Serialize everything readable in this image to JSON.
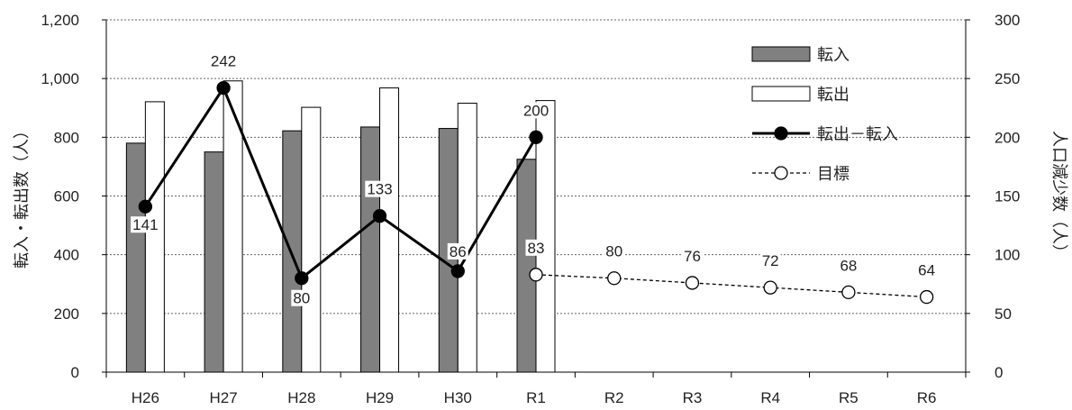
{
  "chart_data": {
    "type": "bar",
    "categories": [
      "H26",
      "H27",
      "H28",
      "H29",
      "H30",
      "R1",
      "R2",
      "R3",
      "R4",
      "R5",
      "R6"
    ],
    "ylabel": "転入・転出数（人）",
    "y2label": "人口減少数（人）",
    "ylim": [
      0,
      1200
    ],
    "y2lim": [
      0,
      300
    ],
    "yticks": [
      "0",
      "200",
      "400",
      "600",
      "800",
      "1,000",
      "1,200"
    ],
    "y2ticks": [
      "0",
      "50",
      "100",
      "150",
      "200",
      "250",
      "300"
    ],
    "grid": "horizontal dotted",
    "legend_position": "top-right",
    "series": [
      {
        "name": "転入",
        "kind": "bar",
        "axis": "left",
        "color": "#808080",
        "values": [
          780,
          750,
          822,
          835,
          830,
          725,
          null,
          null,
          null,
          null,
          null
        ]
      },
      {
        "name": "転出",
        "kind": "bar",
        "axis": "left",
        "color": "#ffffff",
        "values": [
          921,
          992,
          902,
          968,
          916,
          925,
          null,
          null,
          null,
          null,
          null
        ]
      },
      {
        "name": "転出－転入",
        "kind": "line",
        "axis": "right",
        "color": "#000000",
        "values": [
          141,
          242,
          80,
          133,
          86,
          200,
          null,
          null,
          null,
          null,
          null
        ],
        "labels": [
          "141",
          "242",
          "80",
          "133",
          "86",
          "200",
          "",
          "",
          "",
          "",
          ""
        ]
      },
      {
        "name": "目標",
        "kind": "line-dashed",
        "axis": "right",
        "color": "#000000",
        "values": [
          null,
          null,
          null,
          null,
          null,
          83,
          80,
          76,
          72,
          68,
          64
        ],
        "labels": [
          "",
          "",
          "",
          "",
          "",
          "83",
          "80",
          "76",
          "72",
          "68",
          "64"
        ]
      }
    ]
  }
}
